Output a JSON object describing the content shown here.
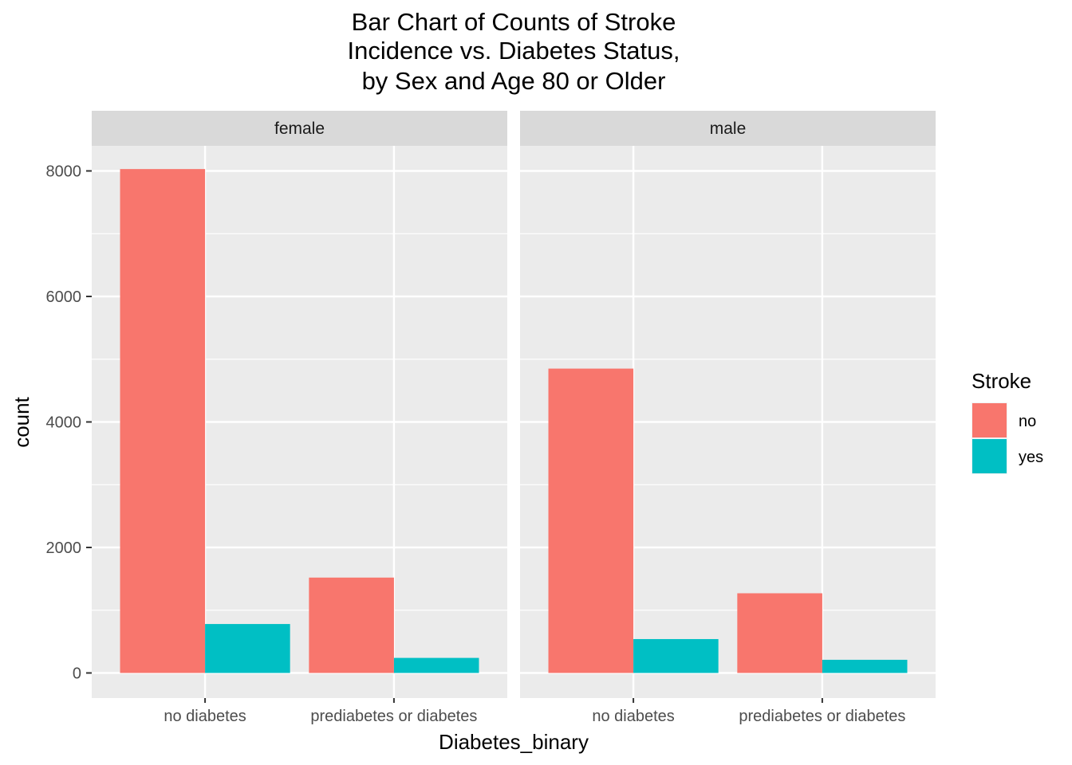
{
  "chart_data": {
    "type": "bar",
    "title": [
      "Bar Chart of Counts of Stroke",
      "Incidence vs. Diabetes Status,",
      "by Sex and Age 80 or Older"
    ],
    "xlabel": "Diabetes_binary",
    "ylabel": "count",
    "ylim": [
      -400,
      8400
    ],
    "yticks": [
      0,
      2000,
      4000,
      6000,
      8000
    ],
    "grid": true,
    "legend_position": "right",
    "legend": {
      "title": "Stroke",
      "items": [
        {
          "label": "no",
          "color": "#F8766D"
        },
        {
          "label": "yes",
          "color": "#00BFC4"
        }
      ]
    },
    "categories": [
      "no diabetes",
      "prediabetes or diabetes"
    ],
    "panels": [
      {
        "label": "female",
        "series": [
          {
            "name": "no",
            "values": [
              8030,
              1520
            ]
          },
          {
            "name": "yes",
            "values": [
              780,
              240
            ]
          }
        ]
      },
      {
        "label": "male",
        "series": [
          {
            "name": "no",
            "values": [
              4850,
              1270
            ]
          },
          {
            "name": "yes",
            "values": [
              540,
              210
            ]
          }
        ]
      }
    ]
  },
  "colors": {
    "panel_background": "#EBEBEB",
    "strip_background": "#D9D9D9",
    "grid": "#FFFFFF"
  }
}
